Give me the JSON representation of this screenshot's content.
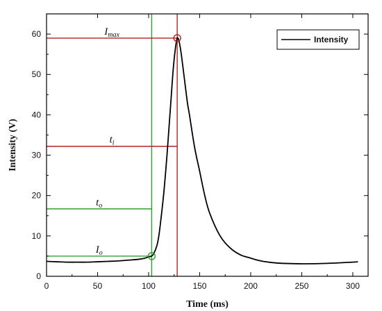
{
  "chart_data": {
    "type": "line",
    "xlabel": "Time (ms)",
    "ylabel": "Intensity (V)",
    "xlim": [
      0,
      315
    ],
    "ylim": [
      0,
      65
    ],
    "x_ticks": [
      0,
      50,
      100,
      150,
      200,
      250,
      300
    ],
    "y_ticks": [
      0,
      10,
      20,
      30,
      40,
      50,
      60
    ],
    "grid": false,
    "legend": {
      "position": "top-right",
      "entries": [
        "Intensity"
      ]
    },
    "series": [
      {
        "name": "Intensity",
        "color": "#000000",
        "x": [
          0,
          10,
          20,
          30,
          40,
          50,
          60,
          70,
          80,
          90,
          95,
          100,
          103,
          105,
          108,
          110,
          112,
          115,
          118,
          120,
          122,
          124,
          126,
          128,
          130,
          132,
          135,
          138,
          140,
          145,
          150,
          155,
          160,
          170,
          180,
          190,
          200,
          210,
          225,
          250,
          275,
          300,
          305
        ],
        "y": [
          3.7,
          3.6,
          3.5,
          3.5,
          3.5,
          3.6,
          3.7,
          3.8,
          4.0,
          4.2,
          4.4,
          4.8,
          5.0,
          5.6,
          7.5,
          10,
          14,
          21,
          30,
          37,
          44,
          51,
          56,
          59,
          58,
          55,
          49,
          43,
          40,
          32,
          26,
          20,
          15.5,
          10,
          7,
          5.3,
          4.5,
          3.8,
          3.3,
          3.1,
          3.2,
          3.5,
          3.6
        ]
      }
    ],
    "annotations": {
      "I_max": {
        "label": "I",
        "sub": "max",
        "x": 128,
        "y": 59,
        "color": "#b22222"
      },
      "t_i": {
        "label": "t",
        "sub": "i",
        "x": 128,
        "y": 32.2,
        "color": "#b22222"
      },
      "t_o": {
        "label": "t",
        "sub": "o",
        "x": 103,
        "y": 16.7,
        "color": "#2ca02c"
      },
      "I_o": {
        "label": "I",
        "sub": "o",
        "x": 103,
        "y": 5.0,
        "color": "#2ca02c"
      }
    }
  }
}
